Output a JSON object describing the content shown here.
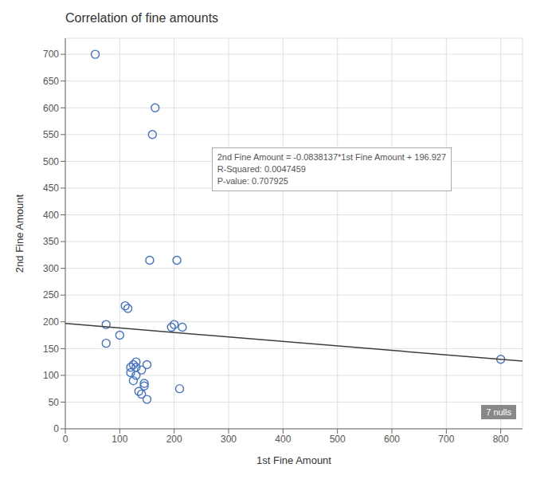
{
  "chart_data": {
    "type": "scatter",
    "title": "Correlation of fine amounts",
    "x_label": "1st Fine Amount",
    "y_label": "2nd Fine Amount",
    "xlim": [
      0,
      840
    ],
    "ylim": [
      0,
      730
    ],
    "xticks": [
      0,
      100,
      200,
      300,
      400,
      500,
      600,
      700,
      800
    ],
    "yticks": [
      0,
      50,
      100,
      150,
      200,
      250,
      300,
      350,
      400,
      450,
      500,
      550,
      600,
      650,
      700
    ],
    "grid": true,
    "series": [
      {
        "type": "scatter",
        "color": "#4472c4",
        "marker": "circle",
        "x": [
          55,
          75,
          75,
          100,
          110,
          115,
          120,
          120,
          125,
          125,
          130,
          130,
          130,
          135,
          140,
          140,
          145,
          145,
          150,
          150,
          155,
          160,
          165,
          195,
          200,
          205,
          210,
          215,
          800
        ],
        "values": [
          700,
          160,
          195,
          175,
          230,
          225,
          105,
          115,
          120,
          90,
          100,
          115,
          125,
          70,
          65,
          110,
          80,
          85,
          55,
          120,
          315,
          550,
          600,
          190,
          195,
          315,
          75,
          190,
          130
        ]
      },
      {
        "type": "line",
        "color": "#3d3d3d",
        "line_style": "solid",
        "x": [
          0,
          840
        ],
        "values": [
          196.927,
          126.523492
        ]
      }
    ],
    "annotations": [
      "2nd Fine Amount = -0.0838137*1st Fine Amount + 196.927\nR-Squared: 0.0047459\nP-value: 0.707925",
      "7 nulls"
    ]
  }
}
